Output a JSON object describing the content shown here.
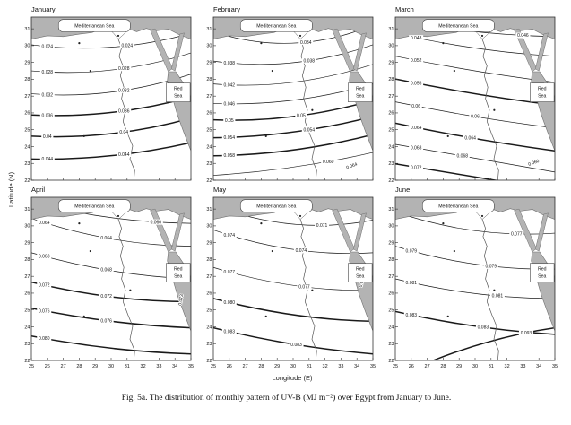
{
  "figure": {
    "caption": "Fig. 5a. The distribution of monthly pattern of UV-B (MJ m⁻²) over Egypt from January to June.",
    "sea_labels": {
      "mediterranean": "Mediterranean Sea",
      "red_sea_line1": "Red",
      "red_sea_line2": "Sea"
    },
    "colors": {
      "sea": "#b3b3b3",
      "coast": "#6e6e6e",
      "contour": "#1a1a1a",
      "frame": "#333333",
      "land": "#ffffff"
    }
  },
  "chart_data": {
    "type": "contour-map-grid",
    "variable": "UV-B (MJ m⁻²)",
    "region": "Egypt",
    "x_axis": {
      "label": "Longitude (E)",
      "ticks": [
        25,
        26,
        27,
        28,
        29,
        30,
        31,
        32,
        33,
        34,
        35
      ]
    },
    "y_axis": {
      "label": "Latitude (N)",
      "ticks": [
        31,
        30,
        29,
        28,
        27,
        26,
        25,
        24,
        23,
        22
      ]
    },
    "months": [
      {
        "name": "January",
        "contours": [
          {
            "value": "0.024",
            "yl": 0.17,
            "yr": 0.1,
            "bend": 0.05,
            "bold": false,
            "labels": [
              0.1,
              0.6
            ]
          },
          {
            "value": "0.028",
            "yl": 0.33,
            "yr": 0.22,
            "bend": 0.05,
            "bold": false,
            "labels": [
              0.1,
              0.58
            ]
          },
          {
            "value": "0.032",
            "yl": 0.47,
            "yr": 0.35,
            "bend": 0.05,
            "bold": false,
            "labels": [
              0.1,
              0.58
            ]
          },
          {
            "value": "0.036",
            "yl": 0.6,
            "yr": 0.49,
            "bend": 0.04,
            "bold": true,
            "labels": [
              0.1,
              0.58
            ]
          },
          {
            "value": "0.04",
            "yl": 0.73,
            "yr": 0.62,
            "bend": 0.04,
            "bold": true,
            "labels": [
              0.1,
              0.58
            ]
          },
          {
            "value": "0.044",
            "yl": 0.87,
            "yr": 0.77,
            "bend": 0.03,
            "bold": true,
            "labels": [
              0.1,
              0.58
            ]
          }
        ],
        "extra_labels": []
      },
      {
        "name": "February",
        "contours": [
          {
            "value": "0.034",
            "yl": 0.09,
            "yr": 0.05,
            "bend": 0.09,
            "bold": false,
            "labels": [
              0.58
            ]
          },
          {
            "value": "0.038",
            "yl": 0.27,
            "yr": 0.17,
            "bend": 0.06,
            "bold": false,
            "labels": [
              0.1,
              0.6
            ]
          },
          {
            "value": "0.042",
            "yl": 0.41,
            "yr": 0.29,
            "bend": 0.05,
            "bold": false,
            "labels": [
              0.1
            ]
          },
          {
            "value": "0.046",
            "yl": 0.53,
            "yr": 0.41,
            "bend": 0.04,
            "bold": false,
            "labels": [
              0.1
            ]
          },
          {
            "value": "0.05",
            "yl": 0.63,
            "yr": 0.51,
            "bend": 0.04,
            "bold": true,
            "labels": [
              0.1,
              0.55
            ]
          },
          {
            "value": "0.054",
            "yl": 0.74,
            "yr": 0.61,
            "bend": 0.03,
            "bold": true,
            "labels": [
              0.1,
              0.6
            ]
          },
          {
            "value": "0.058",
            "yl": 0.85,
            "yr": 0.72,
            "bend": 0.03,
            "bold": true,
            "labels": [
              0.1
            ]
          },
          {
            "value": "0.060",
            "yl": 0.97,
            "yr": 0.83,
            "bend": 0.02,
            "bold": false,
            "labels": [
              0.72
            ]
          }
        ],
        "extra_labels": [
          {
            "value": "0.064",
            "x": 0.87,
            "y": 0.92,
            "rot": -20
          }
        ]
      },
      {
        "name": "March",
        "contours": [
          {
            "value": "0.046",
            "yl": 0.02,
            "yr": 0.12,
            "bend": 0.02,
            "bold": false,
            "labels": [
              0.8
            ]
          },
          {
            "value": "0.048",
            "yl": 0.1,
            "yr": 0.24,
            "bend": 0.02,
            "bold": false,
            "labels": [
              0.13
            ]
          },
          {
            "value": "0.052",
            "yl": 0.24,
            "yr": 0.4,
            "bend": 0.01,
            "bold": false,
            "labels": [
              0.13
            ]
          },
          {
            "value": "0.056",
            "yl": 0.38,
            "yr": 0.54,
            "bend": 0.01,
            "bold": true,
            "labels": [
              0.13
            ]
          },
          {
            "value": "0.06",
            "yl": 0.52,
            "yr": 0.68,
            "bend": 0.01,
            "bold": false,
            "labels": [
              0.13,
              0.5
            ]
          },
          {
            "value": "0.064",
            "yl": 0.65,
            "yr": 0.82,
            "bend": 0.01,
            "bold": true,
            "labels": [
              0.13,
              0.47
            ]
          },
          {
            "value": "0.068",
            "yl": 0.78,
            "yr": 0.95,
            "bend": 0.0,
            "bold": false,
            "labels": [
              0.13,
              0.42
            ]
          },
          {
            "value": "0.072",
            "yl": 0.9,
            "yr": 1.06,
            "bend": 0.0,
            "bold": true,
            "labels": [
              0.13
            ]
          }
        ],
        "extra_labels": [
          {
            "value": "0.050",
            "x": 0.945,
            "y": 0.44,
            "rot": -75
          },
          {
            "value": "0.060",
            "x": 0.87,
            "y": 0.9,
            "rot": -20
          }
        ]
      },
      {
        "name": "April",
        "contours": [
          {
            "value": "0.060",
            "yl": 0.03,
            "yr": 0.16,
            "bend": 0.03,
            "bold": false,
            "labels": [
              0.78
            ]
          },
          {
            "value": "0.064",
            "yl": 0.13,
            "yr": 0.3,
            "bend": 0.04,
            "bold": false,
            "labels": [
              0.08,
              0.47
            ]
          },
          {
            "value": "0.068",
            "yl": 0.34,
            "yr": 0.5,
            "bend": 0.03,
            "bold": false,
            "labels": [
              0.08,
              0.47
            ]
          },
          {
            "value": "0.072",
            "yl": 0.52,
            "yr": 0.64,
            "bend": 0.03,
            "bold": true,
            "labels": [
              0.08,
              0.47
            ]
          },
          {
            "value": "0.076",
            "yl": 0.68,
            "yr": 0.8,
            "bend": 0.02,
            "bold": true,
            "labels": [
              0.08,
              0.47
            ]
          },
          {
            "value": "0.080",
            "yl": 0.85,
            "yr": 0.96,
            "bend": 0.02,
            "bold": true,
            "labels": [
              0.08
            ]
          }
        ],
        "extra_labels": [
          {
            "value": "0.073",
            "x": 0.945,
            "y": 0.63,
            "rot": -80
          }
        ]
      },
      {
        "name": "May",
        "contours": [
          {
            "value": "0.071",
            "yl": 0.05,
            "yr": 0.14,
            "bend": 0.07,
            "bold": false,
            "labels": [
              0.68
            ]
          },
          {
            "value": "0.074",
            "yl": 0.2,
            "yr": 0.34,
            "bend": 0.05,
            "bold": false,
            "labels": [
              0.1,
              0.55
            ]
          },
          {
            "value": "0.077",
            "yl": 0.43,
            "yr": 0.57,
            "bend": 0.04,
            "bold": false,
            "labels": [
              0.1,
              0.57
            ]
          },
          {
            "value": "0.080",
            "yl": 0.62,
            "yr": 0.76,
            "bend": 0.03,
            "bold": true,
            "labels": [
              0.1
            ]
          },
          {
            "value": "0.083",
            "yl": 0.8,
            "yr": 0.96,
            "bend": 0.02,
            "bold": true,
            "labels": [
              0.1,
              0.52
            ]
          }
        ],
        "extra_labels": [
          {
            "value": "0.077",
            "x": 0.94,
            "y": 0.52,
            "rot": -75
          }
        ]
      },
      {
        "name": "June",
        "contours": [
          {
            "value": "0.077",
            "yl": 0.09,
            "yr": 0.22,
            "bend": 0.05,
            "bold": false,
            "labels": [
              0.76
            ]
          },
          {
            "value": "0.079",
            "yl": 0.3,
            "yr": 0.44,
            "bend": 0.04,
            "bold": false,
            "labels": [
              0.1,
              0.6
            ]
          },
          {
            "value": "0.081",
            "yl": 0.5,
            "yr": 0.62,
            "bend": 0.03,
            "bold": false,
            "labels": [
              0.1,
              0.64
            ]
          },
          {
            "value": "0.083",
            "yl": 0.7,
            "yr": 0.84,
            "bend": 0.02,
            "bold": true,
            "labels": [
              0.1,
              0.55
            ]
          },
          {
            "value": "0.093",
            "yl": 1.1,
            "yr": 0.8,
            "bend": -0.04,
            "bold": true,
            "labels": [
              0.82
            ]
          }
        ],
        "extra_labels": []
      }
    ]
  }
}
